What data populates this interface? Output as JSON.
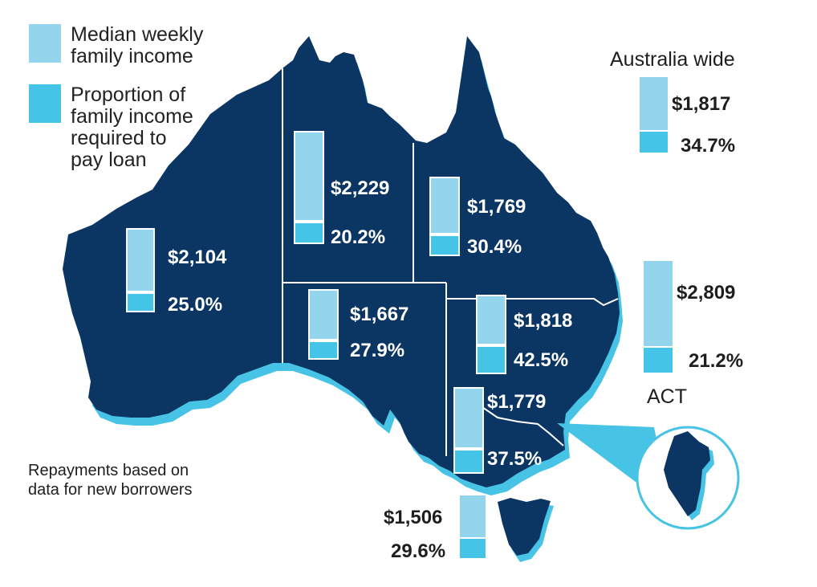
{
  "legend": {
    "income_label": "Median weekly family income",
    "income_line1": "Median weekly",
    "income_line2": "family income",
    "share_label": "Proportion of family income required to pay loan",
    "share_line1": "Proportion of",
    "share_line2": "family income",
    "share_line3": "required to",
    "share_line4": "pay loan",
    "income_color": "#93d5ec",
    "share_color": "#44c5e8"
  },
  "note": {
    "line1": "Repayments based on",
    "line2": "data for new borrowers"
  },
  "colors": {
    "land": "#0b3562",
    "shadow": "#47c3e6",
    "border": "#ffffff"
  },
  "regions": [
    {
      "id": "wa",
      "income": "$2,104",
      "share": "25.0%"
    },
    {
      "id": "nt",
      "income": "$2,229",
      "share": "20.2%"
    },
    {
      "id": "qld",
      "income": "$1,769",
      "share": "30.4%"
    },
    {
      "id": "sa",
      "income": "$1,667",
      "share": "27.9%"
    },
    {
      "id": "nsw",
      "income": "$1,818",
      "share": "42.5%"
    },
    {
      "id": "vic",
      "income": "$1,779",
      "share": "37.5%"
    },
    {
      "id": "tas",
      "income": "$1,506",
      "share": "29.6%"
    },
    {
      "id": "act",
      "label": "ACT",
      "income": "$2,809",
      "share": "21.2%"
    }
  ],
  "australia_wide": {
    "title": "Australia wide",
    "income": "$1,817",
    "share": "34.7%"
  }
}
